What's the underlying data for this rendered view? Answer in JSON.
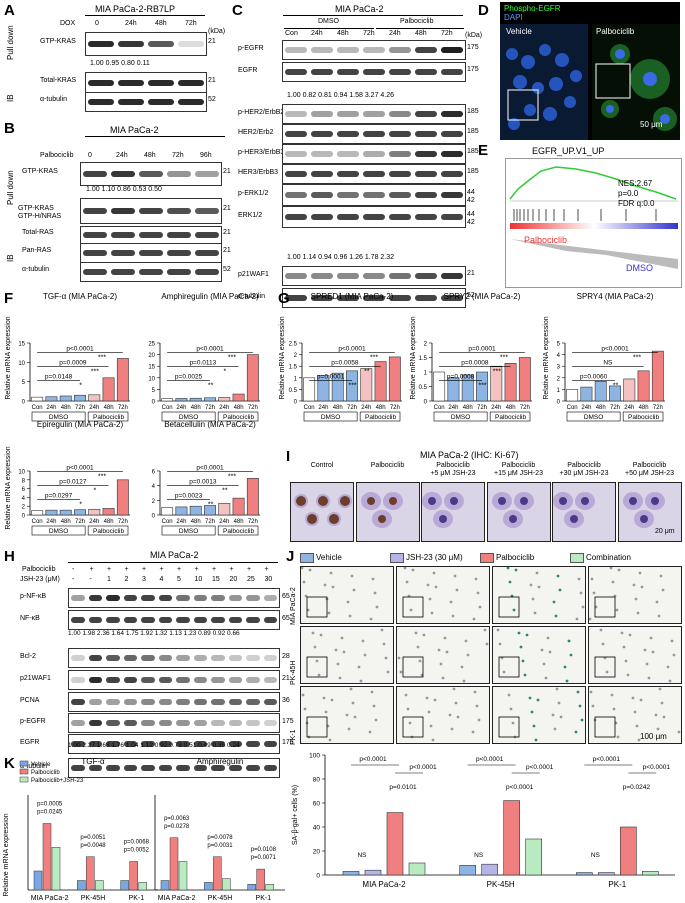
{
  "panels": {
    "A": "A",
    "B": "B",
    "C": "C",
    "D": "D",
    "E": "E",
    "F": "F",
    "G": "G",
    "H": "H",
    "I": "I",
    "J": "J",
    "K": "K"
  },
  "A": {
    "title": "MIA PaCa-2-RB7LP",
    "row_label": "DOX",
    "lanes": [
      "0",
      "24h",
      "48h",
      "72h"
    ],
    "kda": "(kDa)",
    "blots": [
      {
        "name": "GTP-KRAS",
        "mw": "21"
      },
      {
        "name": "Total-KRAS",
        "mw": "21"
      },
      {
        "name": "α-tubulin",
        "mw": "52"
      }
    ],
    "quant": "1.00    0.95    0.80    0.11",
    "pull_down": "Pull down",
    "ib": "IB"
  },
  "B": {
    "title": "MIA PaCa-2",
    "row_label": "Palbociclib",
    "lanes": [
      "0",
      "24h",
      "48h",
      "72h",
      "96h"
    ],
    "blots": [
      {
        "name": "GTP-KRAS",
        "mw": "21"
      },
      {
        "name": "GTP-KRAS\nGTP-H/NRAS",
        "mw": "21"
      },
      {
        "name": "Total-RAS",
        "mw": "21"
      },
      {
        "name": "Pan-RAS",
        "mw": "21"
      },
      {
        "name": "α-tubulin",
        "mw": "52"
      }
    ],
    "quant": "1.00   1.10   0.86   0.53   0.50",
    "pull_down": "Pull down",
    "ib": "IB"
  },
  "C": {
    "title": "MIA PaCa-2",
    "groups": [
      "DMSO",
      "Palbociclib"
    ],
    "lanes": [
      "Con",
      "24h",
      "48h",
      "72h",
      "24h",
      "48h",
      "72h"
    ],
    "blots": [
      {
        "name": "p-EGFR",
        "mw": "175"
      },
      {
        "name": "EGFR",
        "mw": "175"
      },
      {
        "name": "p-HER2/ErbB2",
        "mw": "185"
      },
      {
        "name": "HER2/Erb2",
        "mw": "185"
      },
      {
        "name": "p-HER3/ErbB3",
        "mw": "185"
      },
      {
        "name": "HER3/ErbB3",
        "mw": "185"
      },
      {
        "name": "p-ERK1/2",
        "mw": "44\n42"
      },
      {
        "name": "ERK1/2",
        "mw": "44\n42"
      },
      {
        "name": "p21WAF1",
        "mw": "21"
      },
      {
        "name": "α-tubulin",
        "mw": "52"
      }
    ],
    "quant1": "1.00  0.82  0.81  0.94  1.58  3.27  4.26",
    "quant2": "1.00  1.14  0.94  0.96  1.26  1.78  2.32",
    "kda": "(kDa)"
  },
  "D": {
    "stain1": "Phospho-EGFR",
    "stain2": "DAPI",
    "left": "Vehicle",
    "right": "Palbociclib",
    "scale": "50 μm"
  },
  "E": {
    "title": "EGFR_UP.V1_UP",
    "nes": "NES:2.67",
    "p": "p=0.0",
    "fdr": "FDR q:0.0",
    "pos": "Palbociclib",
    "neg": "DMSO"
  },
  "F": {
    "charts": [
      {
        "title": "TGF-α (MIA PaCa-2)",
        "p": [
          "p=0.0148",
          "p=0.0009",
          "p<0.0001"
        ],
        "stars": [
          "*",
          "***",
          "***"
        ]
      },
      {
        "title": "Amphiregulin (MIA PaCa-2)",
        "p": [
          "p=0.0025",
          "p=0.0113",
          "p<0.0001"
        ],
        "stars": [
          "**",
          "*",
          "***"
        ]
      },
      {
        "title": "Epiregulin (MIA PaCa-2)",
        "p": [
          "p=0.0297",
          "p=0.0127",
          "p<0.0001"
        ],
        "stars": [
          "*",
          "*",
          "***"
        ]
      },
      {
        "title": "Betacellulin (MIA PaCa-2)",
        "p": [
          "p=0.0023",
          "p=0.0013",
          "p<0.0001"
        ],
        "stars": [
          "**",
          "**",
          "***"
        ]
      }
    ]
  },
  "G": {
    "charts": [
      {
        "title": "SPRED1 (MIA PaCa-2)",
        "p": [
          "p=0.0001",
          "p=0.0058",
          "p<0.0001"
        ],
        "stars": [
          "***",
          "**",
          "***"
        ]
      },
      {
        "title": "SPRY2 (MIA PaCa-2)",
        "p": [
          "p=0.0008",
          "p=0.0008",
          "p=0.0001"
        ],
        "stars": [
          "***",
          "***",
          "***"
        ]
      },
      {
        "title": "SPRY4 (MIA PaCa-2)",
        "p": [
          "p=0.0060",
          "NS",
          "p<0.0001"
        ],
        "stars": [
          "**",
          "",
          "***"
        ]
      }
    ]
  },
  "FG_common": {
    "ylabel": "Relative mRNA expression",
    "xticks": [
      "Con",
      "24h",
      "48h",
      "72h",
      "24h",
      "48h",
      "72h"
    ],
    "g1": "DMSO",
    "g2": "Palbociclib"
  },
  "H": {
    "title": "MIA PaCa-2",
    "row1": "Palbociclib",
    "row2": "JSH-23 (μM)",
    "palbo": [
      "-",
      "+",
      "+",
      "+",
      "+",
      "+",
      "+",
      "+",
      "+",
      "+",
      "+",
      "+"
    ],
    "jsh": [
      "-",
      "-",
      "1",
      "2",
      "3",
      "4",
      "5",
      "10",
      "15",
      "20",
      "25",
      "30"
    ],
    "blots": [
      {
        "name": "p-NF-κB",
        "mw": "65"
      },
      {
        "name": "NF-κB",
        "mw": "65"
      },
      {
        "name": "Bcl-2",
        "mw": "28"
      },
      {
        "name": "p21WAF1",
        "mw": "21"
      },
      {
        "name": "PCNA",
        "mw": "36"
      },
      {
        "name": "p-EGFR",
        "mw": "175"
      },
      {
        "name": "EGFR",
        "mw": "175"
      },
      {
        "name": "α-tubulin",
        "mw": ""
      }
    ],
    "quant1": "1.00  1.98  2.36  1.64  1.75  1.92  1.32  1.13  1.23  0.89  0.92  0.66",
    "quant2": "1.00  2.27  1.68  1.76  1.04  1.12  0.92  0.78  0.51  0.49  0.35  0.24"
  },
  "I": {
    "title": "MIA PaCa-2 (IHC: Ki-67)",
    "cols": [
      "Control",
      "Palbociclib",
      "Palbociclib\n+5 μM JSH-23",
      "Palbociclib\n+15 μM JSH-23",
      "Palbociclib\n+30 μM JSH-23",
      "Palbociclib\n+50 μM JSH-23"
    ],
    "scale": "20 μm"
  },
  "J": {
    "legend": [
      {
        "label": "Vehicle",
        "color": "#8db4e2"
      },
      {
        "label": "JSH-23 (30 μM)",
        "color": "#b4b4e6"
      },
      {
        "label": "Palbociclib",
        "color": "#f08080"
      },
      {
        "label": "Combination",
        "color": "#b8ecc0"
      }
    ],
    "rows": [
      "MIA PaCa-2",
      "PK-45H",
      "PK-1"
    ],
    "scale": "100 μm",
    "ylabel": "SA-β-gal+ cells (%)",
    "chart_data": {
      "type": "bar",
      "categories": [
        "MIA PaCa-2",
        "PK-45H",
        "PK-1"
      ],
      "series": [
        {
          "name": "Vehicle",
          "values": [
            3,
            8,
            2
          ]
        },
        {
          "name": "JSH-23 (30 μM)",
          "values": [
            4,
            9,
            2
          ]
        },
        {
          "name": "Palbociclib",
          "values": [
            52,
            62,
            40
          ]
        },
        {
          "name": "Combination",
          "values": [
            10,
            30,
            3
          ]
        }
      ],
      "yticks": [
        "0",
        "20",
        "40",
        "60",
        "80",
        "100"
      ],
      "ylim": [
        0,
        100
      ]
    },
    "pvals": [
      "p<0.0001",
      "p<0.0001",
      "p=0.0101",
      "p<0.0001",
      "p<0.0001",
      "p<0.0001",
      "p<0.0001",
      "p<0.0001",
      "p=0.0242"
    ],
    "ns": "NS"
  },
  "K": {
    "legend": [
      "Vehicle",
      "Palbociclib",
      "Palbociclib+JSH-23"
    ],
    "colors": [
      "#7aa7e0",
      "#f08080",
      "#b8ecc0"
    ],
    "ylabel": "Relative mRNA expression",
    "tgf_title": "TGF-α",
    "amph_title": "Amphiregulin",
    "cells": [
      "MIA PaCa-2",
      "PK-45H",
      "PK-1"
    ],
    "tgf_p": [
      "p=0.0005",
      "p=0.0245",
      "p=0.0051",
      "p=0.0048",
      "p=0.0068",
      "p=0.0052"
    ],
    "amph_p": [
      "p=0.0063",
      "p=0.0278",
      "p=0.0078",
      "p=0.0031",
      "p=0.0108",
      "p=0.0071"
    ]
  }
}
